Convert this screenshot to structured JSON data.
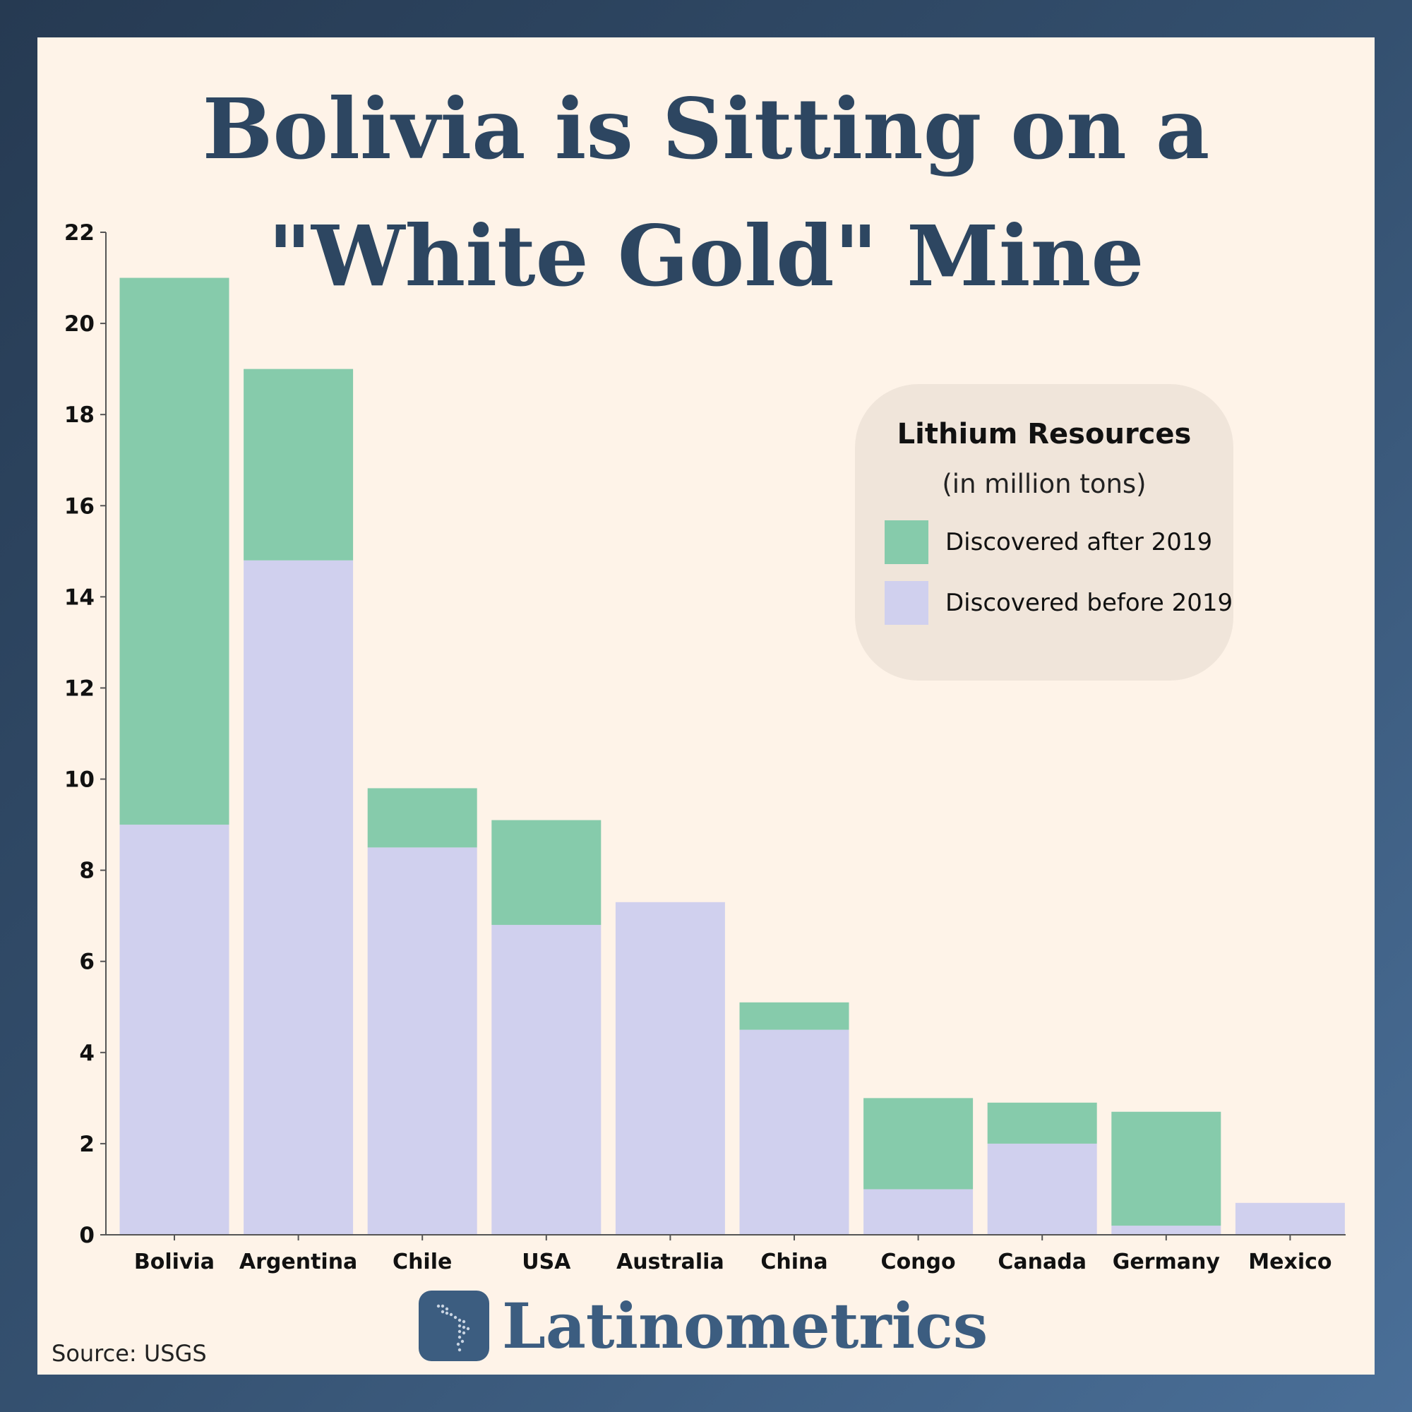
{
  "title_lines": [
    "Bolivia is Sitting on a",
    "\"White Gold\" Mine"
  ],
  "legend": {
    "title": "Lithium Resources",
    "subtitle": "(in million tons)",
    "items": [
      {
        "label": "Discovered after 2019",
        "color": "#86cbab"
      },
      {
        "label": "Discovered before 2019",
        "color": "#d0d0ee"
      }
    ]
  },
  "brand": "Latinometrics",
  "source": "Source: USGS",
  "colors": {
    "after": "#86cbab",
    "before": "#d0d0ee",
    "axis": "#555555",
    "title": "#2d4661"
  },
  "chart_data": {
    "type": "bar",
    "stacked": true,
    "categories": [
      "Bolivia",
      "Argentina",
      "Chile",
      "USA",
      "Australia",
      "China",
      "Congo",
      "Canada",
      "Germany",
      "Mexico"
    ],
    "series": [
      {
        "name": "Discovered before 2019",
        "values": [
          9,
          14.8,
          8.5,
          6.8,
          7.3,
          4.5,
          1,
          2,
          0.2,
          0.7
        ]
      },
      {
        "name": "Discovered after 2019",
        "values": [
          12,
          4.2,
          1.3,
          2.3,
          0,
          0.6,
          2,
          0.9,
          2.5,
          0
        ]
      }
    ],
    "yticks": [
      0,
      2,
      4,
      6,
      8,
      10,
      12,
      14,
      16,
      18,
      20,
      22
    ],
    "ylim": [
      0,
      22
    ],
    "grid": false,
    "legend_position": "right"
  }
}
